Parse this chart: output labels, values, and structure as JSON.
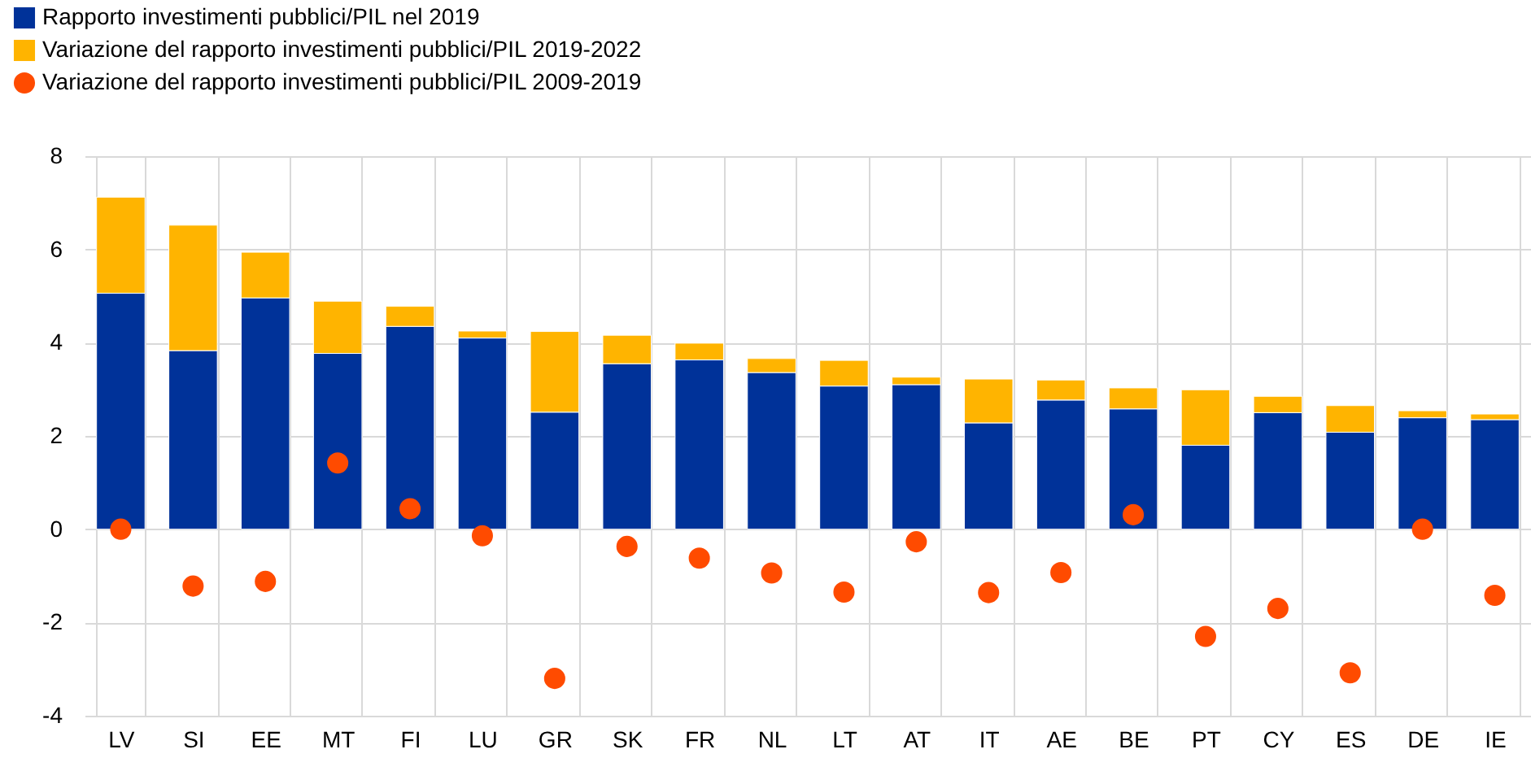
{
  "chart_data": {
    "type": "bar",
    "stacked": true,
    "categories": [
      "LV",
      "SI",
      "EE",
      "MT",
      "FI",
      "LU",
      "GR",
      "SK",
      "FR",
      "NL",
      "LT",
      "AT",
      "IT",
      "AE",
      "BE",
      "PT",
      "CY",
      "ES",
      "DE",
      "IE"
    ],
    "series": [
      {
        "name": "Rapporto investimenti pubblici/PIL nel 2019",
        "color": "#003299",
        "values": [
          5.06,
          3.83,
          4.96,
          3.77,
          4.35,
          4.1,
          2.51,
          3.55,
          3.63,
          3.36,
          3.07,
          3.1,
          2.28,
          2.77,
          2.58,
          1.8,
          2.5,
          2.08,
          2.39,
          2.35
        ]
      },
      {
        "name": "Variazione del rapporto investimenti pubblici/PIL 2019-2022",
        "color": "#ffb400",
        "values": [
          2.06,
          2.69,
          0.98,
          1.12,
          0.43,
          0.15,
          1.73,
          0.61,
          0.36,
          0.3,
          0.55,
          0.16,
          0.94,
          0.43,
          0.45,
          1.19,
          0.35,
          0.57,
          0.15,
          0.12
        ]
      },
      {
        "name": "Variazione del rapporto investimenti pubblici/PIL 2009-2019",
        "type": "scatter",
        "color": "#ff4b00",
        "values": [
          0.0,
          -1.22,
          -1.12,
          1.42,
          0.44,
          -0.14,
          -3.2,
          -0.37,
          -0.62,
          -0.94,
          -1.35,
          -0.27,
          -1.36,
          -0.93,
          0.31,
          -2.3,
          -1.7,
          -3.08,
          0.0,
          -1.42
        ]
      }
    ],
    "marker": "circle",
    "ylim": [
      -4,
      8
    ],
    "yticks": [
      -4,
      -2,
      0,
      2,
      4,
      6,
      8
    ],
    "grid": true,
    "legend": "top left"
  }
}
